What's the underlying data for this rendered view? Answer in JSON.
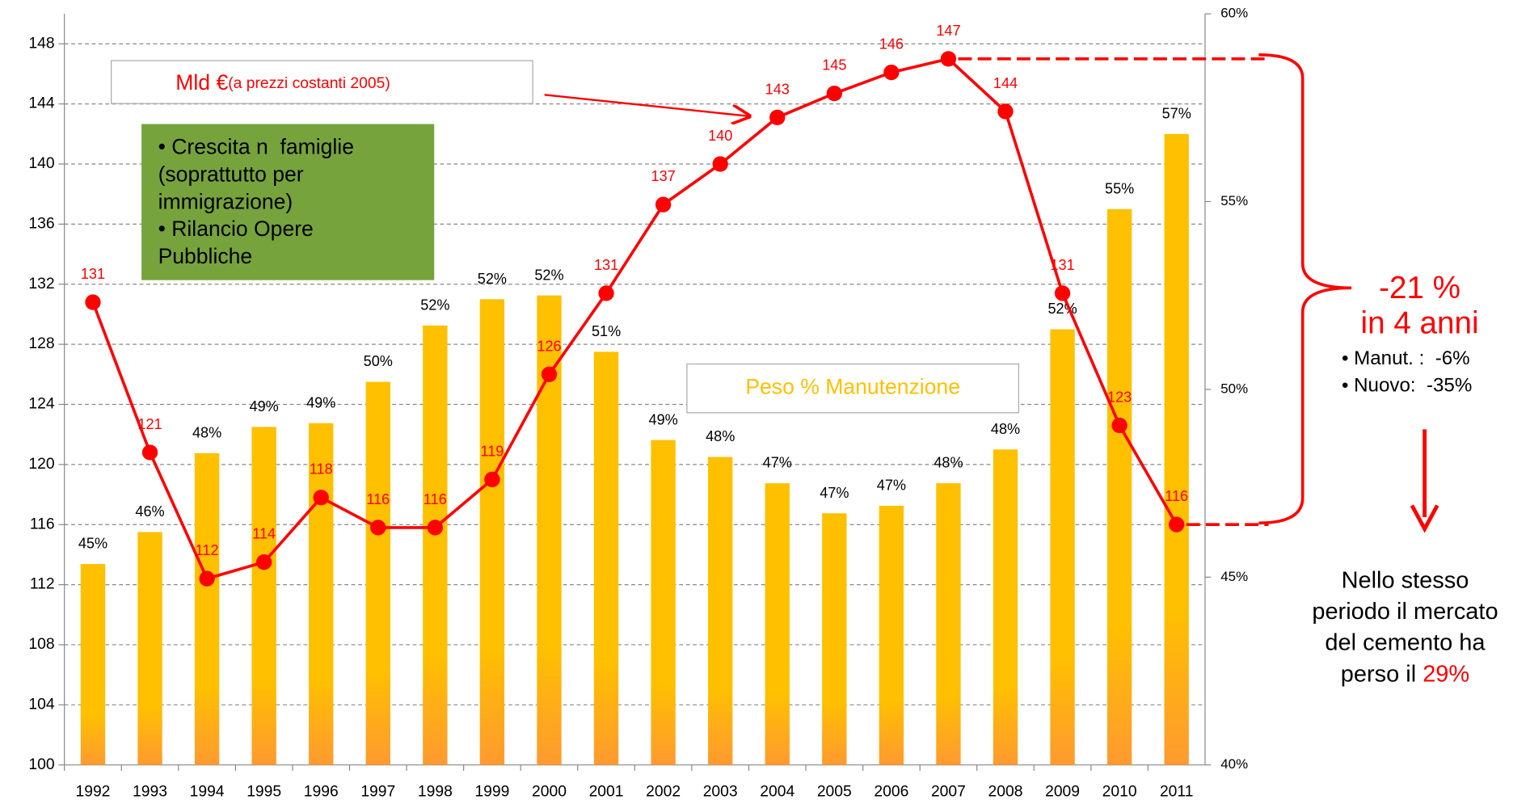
{
  "chart_data": {
    "type": "bar_line",
    "categories": [
      "1992",
      "1993",
      "1994",
      "1995",
      "1996",
      "1997",
      "1998",
      "1999",
      "2000",
      "2001",
      "2002",
      "2003",
      "2004",
      "2005",
      "2006",
      "2007",
      "2008",
      "2009",
      "2010",
      "2011"
    ],
    "series": [
      {
        "name": "Peso % Manutenzione",
        "color": "#ffc000",
        "axis": "y2",
        "kind": "bar",
        "values": [
          45.35,
          46.2,
          48.3,
          49.0,
          49.1,
          50.2,
          51.7,
          52.4,
          52.5,
          51.0,
          48.65,
          48.2,
          47.5,
          46.7,
          46.9,
          47.5,
          48.4,
          51.6,
          54.8,
          56.8
        ],
        "value_labels": [
          "45%",
          "46%",
          "48%",
          "49%",
          "49%",
          "50%",
          "52%",
          "52%",
          "52%",
          "51%",
          "49%",
          "48%",
          "47%",
          "47%",
          "47%",
          "48%",
          "48%",
          "52%",
          "55%",
          "57%"
        ]
      },
      {
        "name": "Mld €",
        "color": "#ff0000",
        "axis": "y",
        "kind": "line",
        "values": [
          130.8,
          120.8,
          112.4,
          113.5,
          117.8,
          115.8,
          115.8,
          119.0,
          126.0,
          131.4,
          137.3,
          140.0,
          143.1,
          144.7,
          146.1,
          147.0,
          143.5,
          131.4,
          122.6,
          116.0
        ],
        "value_labels": [
          "131",
          "121",
          "112",
          "114",
          "118",
          "116",
          "116",
          "119",
          "126",
          "131",
          "137",
          "140",
          "143",
          "145",
          "146",
          "147",
          "144",
          "131",
          "123",
          "116"
        ]
      }
    ],
    "ylim": [
      100,
      150
    ],
    "yticks": [
      100,
      104,
      108,
      112,
      116,
      120,
      124,
      128,
      132,
      136,
      140,
      144,
      148
    ],
    "y2lim": [
      40,
      60
    ],
    "y2ticks": [
      {
        "value": 40,
        "label": "40%"
      },
      {
        "value": 45,
        "label": "45%"
      },
      {
        "value": 50,
        "label": "50%"
      },
      {
        "value": 55,
        "label": "55%"
      },
      {
        "value": 60,
        "label": "60%"
      }
    ],
    "grid": true,
    "annotations": {
      "line_subtitle": "(a prezzi costanti 2005)",
      "green_box": [
        "• Crescita n  famiglie",
        "(soprattutto per",
        "immigrazione)",
        "• Rilancio Opere",
        "Pubbliche"
      ],
      "change": "-21 %",
      "change_period": "in 4 anni",
      "details": [
        "• Manut. :  -6%",
        "• Nuovo:  -35%"
      ],
      "note": [
        "Nello stesso",
        "periodo il mercato",
        "del cemento ha",
        "perso il "
      ],
      "note_highlight": "29%"
    }
  }
}
